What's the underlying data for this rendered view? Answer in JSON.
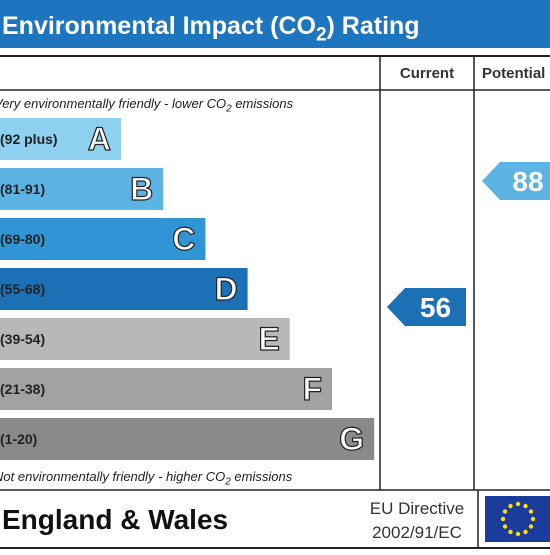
{
  "title": [
    "Environmental Impact (CO",
    "2",
    ") Rating"
  ],
  "columns": [
    "Current",
    "Potential"
  ],
  "top_note": [
    "Very environmentally friendly - lower CO",
    "2",
    " emissions"
  ],
  "bottom_note": [
    "Not environmentally friendly - higher CO",
    "2",
    " emissions"
  ],
  "bands": [
    {
      "range": "(92 plus)",
      "letter": "A",
      "color": "#8ed0f0"
    },
    {
      "range": "(81-91)",
      "letter": "B",
      "color": "#5cb4e4"
    },
    {
      "range": "(69-80)",
      "letter": "C",
      "color": "#2f95d5"
    },
    {
      "range": "(55-68)",
      "letter": "D",
      "color": "#1c70b6"
    },
    {
      "range": "(39-54)",
      "letter": "E",
      "color": "#b8b8b8"
    },
    {
      "range": "(21-38)",
      "letter": "F",
      "color": "#a2a2a2"
    },
    {
      "range": "(1-20)",
      "letter": "G",
      "color": "#8a8a8a"
    }
  ],
  "current": 56,
  "potential": 88,
  "footer": {
    "region": "England & Wales",
    "directive": [
      "EU Directive",
      "2002/91/EC"
    ]
  }
}
